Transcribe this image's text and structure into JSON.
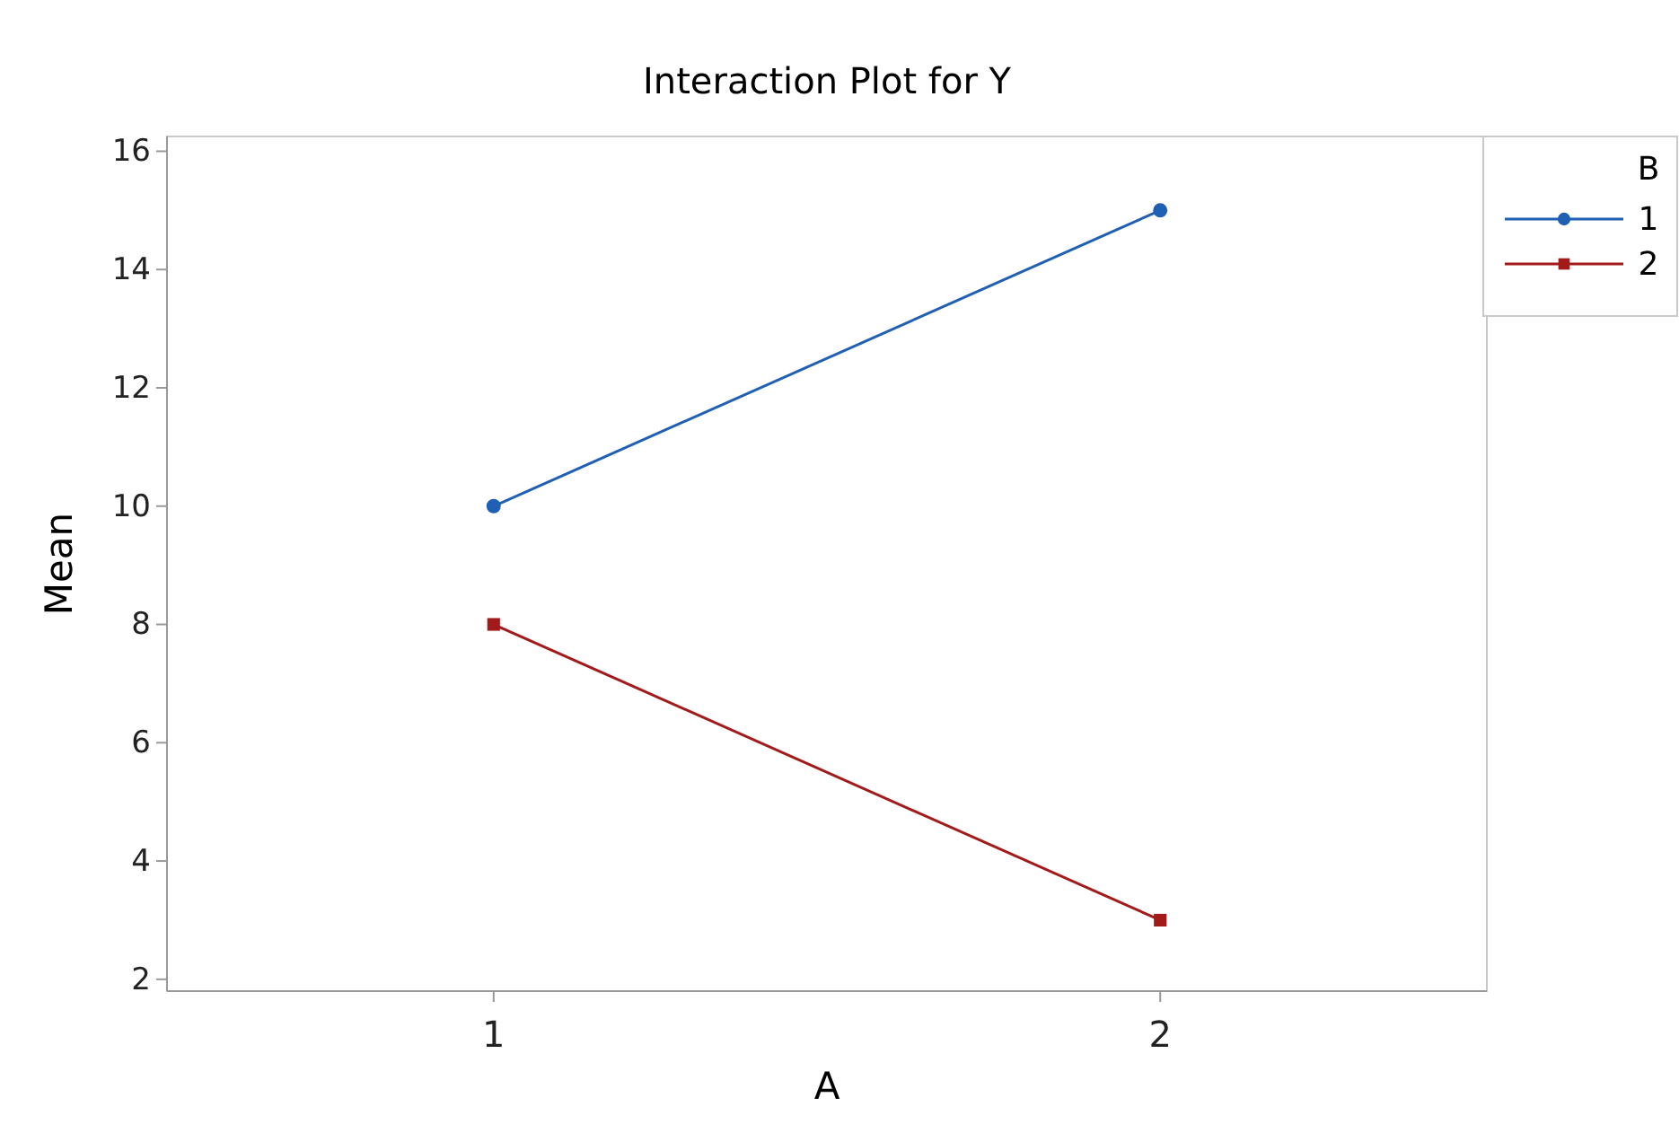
{
  "chart_data": {
    "type": "line",
    "title": "Interaction Plot for Y",
    "xlabel": "A",
    "ylabel": "Mean",
    "legend_title": "B",
    "categories": [
      "1",
      "2"
    ],
    "series": [
      {
        "name": "1",
        "color": "#1f5fb4",
        "values": [
          10,
          15
        ],
        "marker": "circle"
      },
      {
        "name": "2",
        "color": "#a31a1a",
        "values": [
          8,
          3
        ],
        "marker": "square"
      }
    ],
    "ylim": [
      1.8,
      16.25
    ],
    "yticks": [
      2,
      4,
      6,
      8,
      10,
      12,
      14,
      16
    ],
    "grid": false,
    "legend": "top right"
  }
}
